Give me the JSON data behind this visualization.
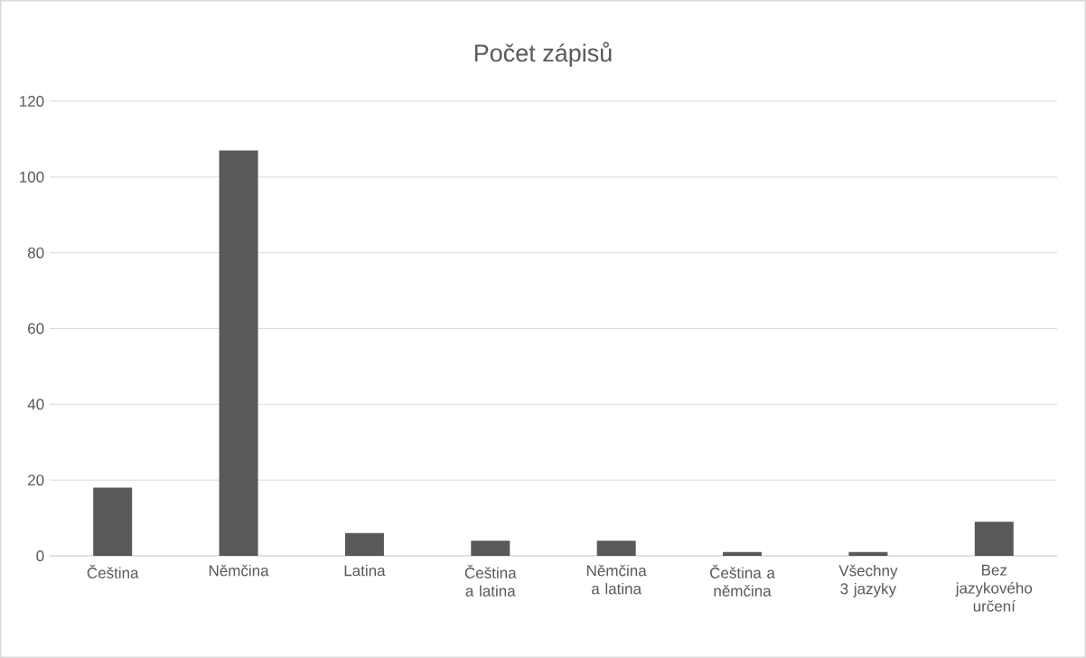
{
  "chart_data": {
    "type": "bar",
    "title": "Počet zápisů",
    "categories": [
      "Čeština",
      "Němčina",
      "Latina",
      "Čeština a latina",
      "Němčina a latina",
      "Čeština a němčina",
      "Všechny 3 jazyky",
      "Bez jazykového určení"
    ],
    "values": [
      18,
      107,
      6,
      4,
      4,
      1,
      1,
      9
    ],
    "color": "#595959",
    "ylim": [
      0,
      120
    ],
    "yticks": [
      0,
      20,
      40,
      60,
      80,
      100,
      120
    ],
    "grid": "y"
  }
}
